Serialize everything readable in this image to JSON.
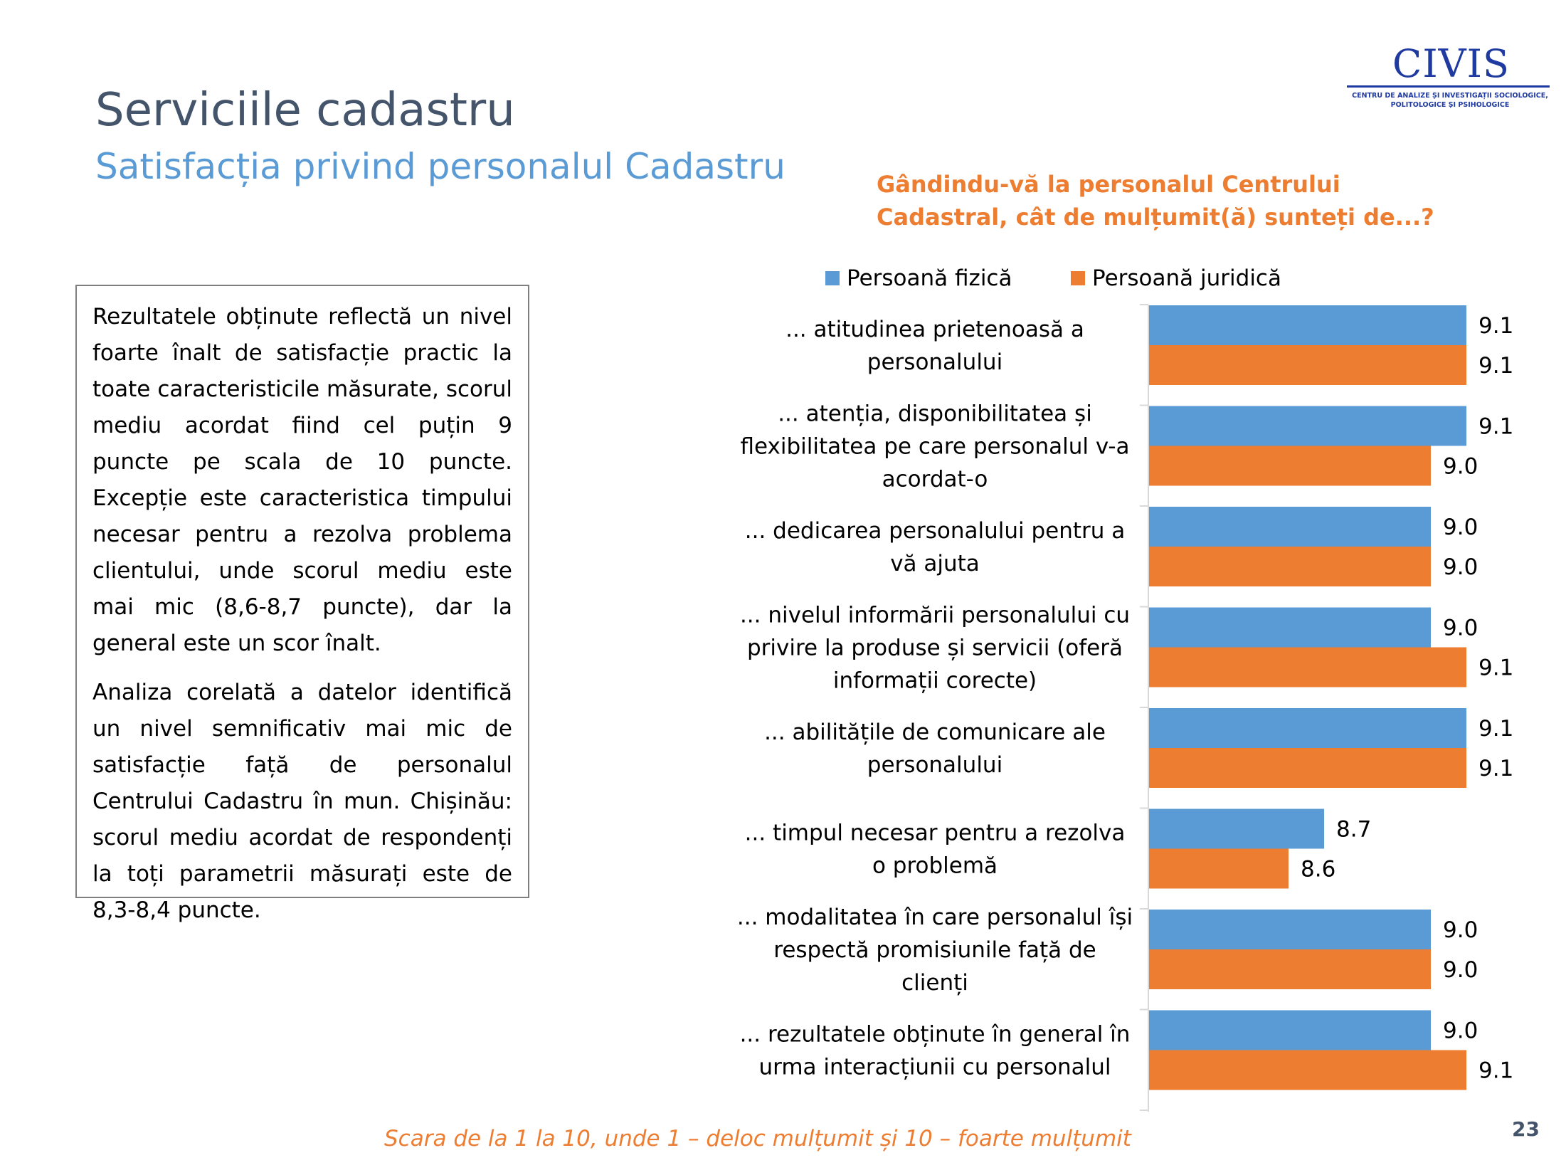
{
  "header": {
    "title": "Serviciile cadastru",
    "subtitle": "Satisfacția privind personalul Cadastru"
  },
  "logo": {
    "word": "CIVIS",
    "caption_line1": "CENTRU DE ANALIZE ȘI INVESTIGAȚII SOCIOLOGICE,",
    "caption_line2": "POLITOLOGICE ȘI PSIHOLOGICE"
  },
  "question": "Gândindu-vă la personalul Centrului Cadastral, cât de mulțumit(ă) sunteți de...?",
  "textbox": {
    "paragraph1": "Rezultatele obținute reflectă un nivel foarte înalt de satisfacție practic la toate caracteristicile măsurate, scorul mediu acordat fiind cel puțin 9 puncte pe scala de 10 puncte. Excepție este caracteristica timpului necesar pentru a rezolva problema clientului, unde scorul mediu este mai mic (8,6-8,7 puncte), dar la general este un scor înalt.",
    "paragraph2": "Analiza corelată a datelor identifică un nivel semnificativ mai mic de satisfacție față de personalul Centrului Cadastru în mun. Chișinău: scorul mediu acordat de respondenți la toți parametrii măsurați este de 8,3-8,4 puncte."
  },
  "footnote": "Scara de la 1 la 10, unde 1 – deloc mulțumit și 10 – foarte mulțumit",
  "page_number": "23",
  "colors": {
    "fizica": "#5B9BD5",
    "juridica": "#ED7D31",
    "title": "#44546A",
    "subtitle": "#5B9BD5",
    "accent": "#ED7D31"
  },
  "chart_data": {
    "type": "bar",
    "orientation": "horizontal",
    "title": "Gândindu-vă la personalul Centrului Cadastral, cât de mulțumit(ă) sunteți de...?",
    "legend_position": "top",
    "axis_visible": false,
    "grid": false,
    "categories": [
      [
        "... atitudinea prietenoasă a",
        "personalului"
      ],
      [
        "... atenția, disponibilitatea și",
        "flexibilitatea pe care personalul v-a",
        "acordat-o"
      ],
      [
        "... dedicarea personalului pentru a",
        "vă ajuta"
      ],
      [
        "... nivelul informării personalului cu",
        "privire la produse și servicii (oferă",
        "informații corecte)"
      ],
      [
        "... abilitățile de comunicare ale",
        "personalului"
      ],
      [
        "... timpul necesar pentru a rezolva",
        "o problemă"
      ],
      [
        "... modalitatea în care personalul își",
        "respectă promisiunile față de",
        "clienți"
      ],
      [
        "... rezultatele obținute în general în",
        "urma interacțiunii cu personalul"
      ]
    ],
    "series": [
      {
        "name": "Persoană fizică",
        "values": [
          9.1,
          9.1,
          9.0,
          9.0,
          9.1,
          8.7,
          9.0,
          9.0
        ],
        "labels": [
          "9.1",
          "9.1",
          "9.0",
          "9.0",
          "9.1",
          "8.7",
          "9.0",
          "9.0"
        ]
      },
      {
        "name": "Persoană juridică",
        "values": [
          9.1,
          9.0,
          9.0,
          9.1,
          9.1,
          8.6,
          9.0,
          9.1
        ],
        "labels": [
          "9.1",
          "9.0",
          "9.0",
          "9.1",
          "9.1",
          "8.6",
          "9.0",
          "9.1"
        ]
      }
    ]
  }
}
